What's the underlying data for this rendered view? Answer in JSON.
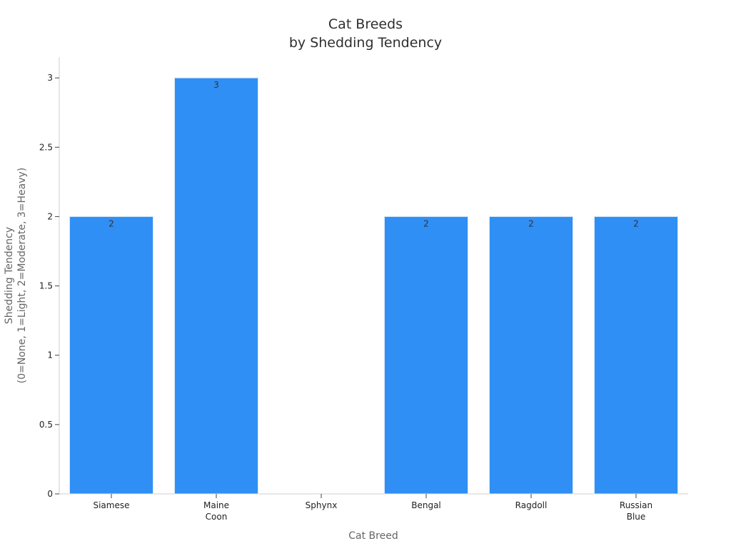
{
  "chart_data": {
    "type": "bar",
    "title": [
      "Cat Breeds",
      "by Shedding Tendency"
    ],
    "xlabel": "Cat Breed",
    "ylabel": [
      "Shedding Tendency",
      "(0=None, 1=Light, 2=Moderate, 3=Heavy)"
    ],
    "categories": [
      [
        "Siamese"
      ],
      [
        "Maine",
        "Coon"
      ],
      [
        "Sphynx"
      ],
      [
        "Bengal"
      ],
      [
        "Ragdoll"
      ],
      [
        "Russian",
        "Blue"
      ]
    ],
    "values": [
      2,
      3,
      0,
      2,
      2,
      2
    ],
    "data_labels": [
      "2",
      "3",
      "",
      "2",
      "2",
      "2"
    ],
    "ylim": [
      0,
      3.15
    ],
    "yticks": [
      0,
      0.5,
      1,
      1.5,
      2,
      2.5,
      3
    ],
    "ytick_labels": [
      "0",
      "0.5",
      "1",
      "1.5",
      "2",
      "2.5",
      "3"
    ],
    "bar_color": "#2f8ff5",
    "bar_edge_color": "#d9e8f7",
    "grid": false,
    "legend": "none"
  }
}
